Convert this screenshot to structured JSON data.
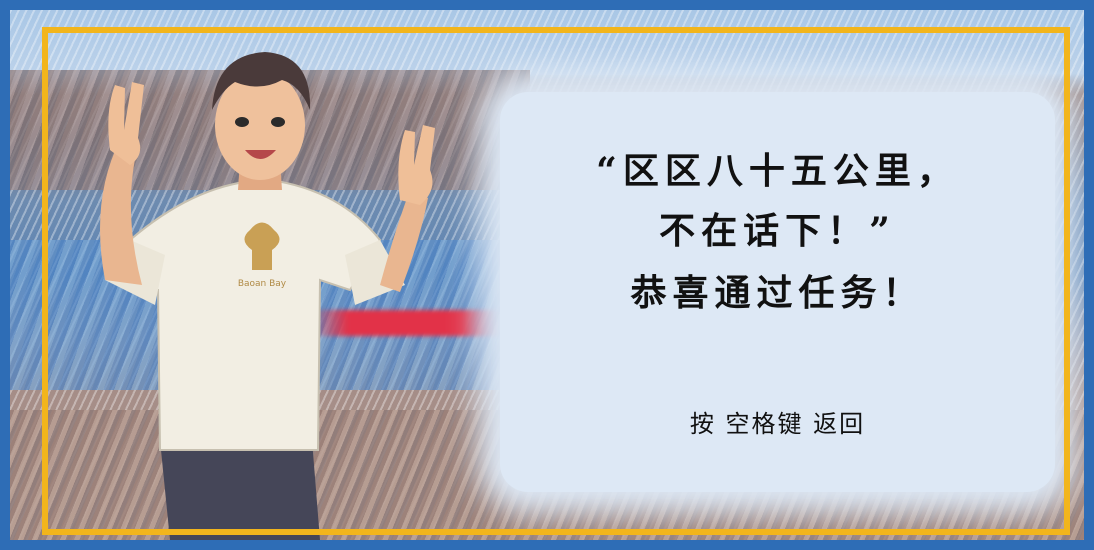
{
  "dialog": {
    "quote_line1": "“区区八十五公里，",
    "quote_line2": "不在话下！”",
    "congrats": "恭喜通过任务！",
    "hint": "按 空格键 返回"
  },
  "colors": {
    "frame": "#f2b51c",
    "border": "#2e6db6",
    "panel": "#dde8f5"
  },
  "character": {
    "shirt_logo_text": "Baoan Bay"
  }
}
